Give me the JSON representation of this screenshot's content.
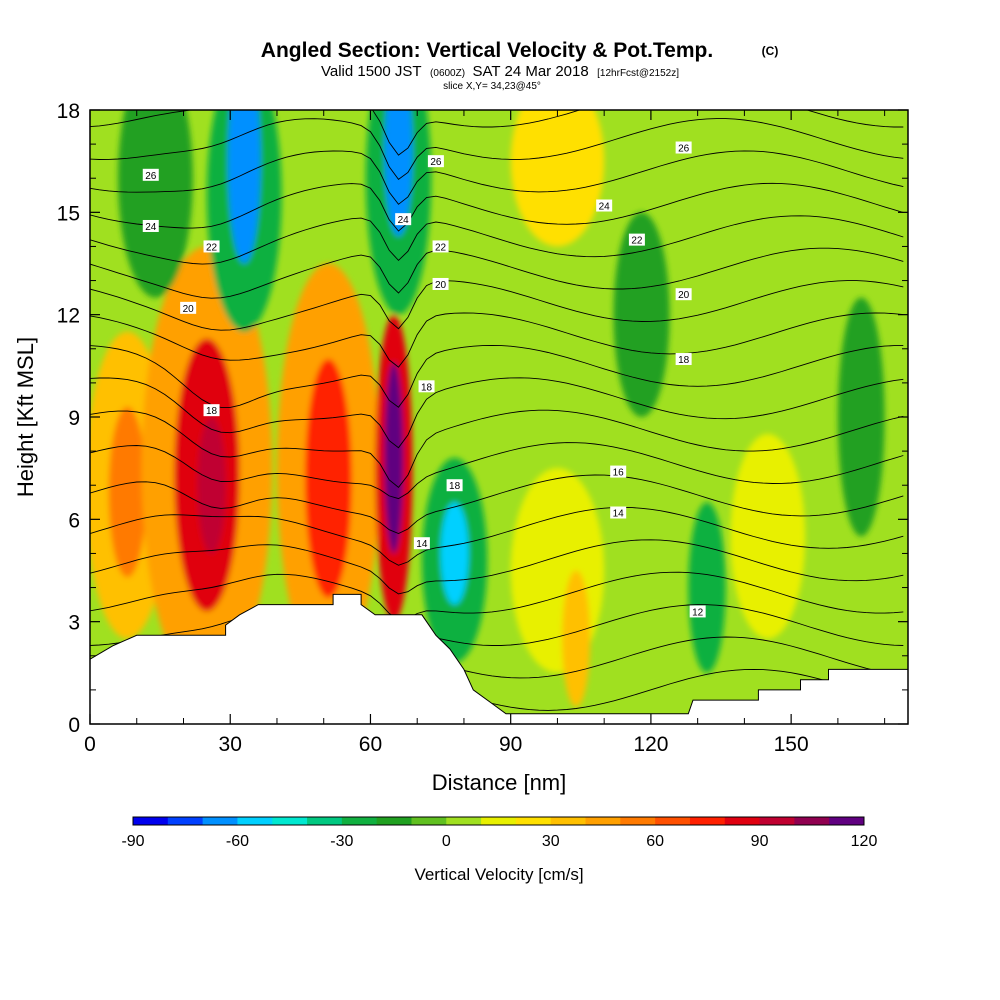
{
  "chart_data": {
    "type": "heatmap",
    "title": "Angled Section: Vertical Velocity & Pot.Temp.",
    "title_unit": "(C)",
    "subtitle_parts": {
      "valid": "Valid 1500 JST",
      "utc": "(0600Z)",
      "date": "SAT 24 Mar 2018",
      "fcst": "[12hrFcst@2152z]"
    },
    "slice_text": "slice X,Y= 34,23@45°",
    "xlabel": "Distance [nm]",
    "ylabel": "Height [Kft MSL]",
    "xlim": [
      0,
      175
    ],
    "ylim": [
      0,
      18
    ],
    "x_ticks": [
      0,
      30,
      60,
      90,
      120,
      150
    ],
    "y_ticks": [
      0,
      3,
      6,
      9,
      12,
      15,
      18
    ],
    "colorbar": {
      "label": "Vertical Velocity [cm/s]",
      "min": -90,
      "max": 120,
      "step": 10,
      "tick_values": [
        -90,
        -60,
        -30,
        0,
        30,
        60,
        90,
        120
      ],
      "colors": [
        "#0000ee",
        "#0040ff",
        "#0090ff",
        "#00d0ff",
        "#00e8d0",
        "#00c880",
        "#10b040",
        "#20a020",
        "#60c020",
        "#a0e020",
        "#e8f000",
        "#ffe000",
        "#ffc000",
        "#ffa000",
        "#ff7a00",
        "#ff5000",
        "#ff2000",
        "#e00010",
        "#c00030",
        "#900050",
        "#600080"
      ]
    },
    "terrain": [
      [
        0,
        1.9
      ],
      [
        5,
        2.3
      ],
      [
        10,
        2.6
      ],
      [
        29,
        2.6
      ],
      [
        29,
        2.9
      ],
      [
        32,
        3.2
      ],
      [
        36,
        3.5
      ],
      [
        52,
        3.5
      ],
      [
        52,
        3.8
      ],
      [
        58,
        3.8
      ],
      [
        58,
        3.5
      ],
      [
        61,
        3.2
      ],
      [
        71,
        3.2
      ],
      [
        74,
        2.6
      ],
      [
        77,
        2.2
      ],
      [
        80,
        1.6
      ],
      [
        82,
        1.0
      ],
      [
        86,
        0.6
      ],
      [
        89,
        0.3
      ],
      [
        128,
        0.3
      ],
      [
        129,
        0.7
      ],
      [
        143,
        0.7
      ],
      [
        143,
        1.0
      ],
      [
        152,
        1.0
      ],
      [
        152,
        1.3
      ],
      [
        158,
        1.3
      ],
      [
        158,
        1.6
      ],
      [
        175,
        1.6
      ]
    ],
    "velocity_cells": [
      {
        "x": 8,
        "y": 7,
        "rx": 9,
        "ry": 4.5,
        "value": 30
      },
      {
        "x": 8,
        "y": 6.8,
        "rx": 4,
        "ry": 2.5,
        "value": 50
      },
      {
        "x": 25,
        "y": 7.5,
        "rx": 14,
        "ry": 6.5,
        "value": 40
      },
      {
        "x": 25,
        "y": 7.3,
        "rx": 7,
        "ry": 4,
        "value": 80
      },
      {
        "x": 26,
        "y": 7.0,
        "rx": 3,
        "ry": 2,
        "value": 90
      },
      {
        "x": 51,
        "y": 7.5,
        "rx": 11,
        "ry": 6,
        "value": 40
      },
      {
        "x": 51,
        "y": 7.2,
        "rx": 5,
        "ry": 3.5,
        "value": 70
      },
      {
        "x": 65,
        "y": 7.5,
        "rx": 4,
        "ry": 4.5,
        "value": 80
      },
      {
        "x": 65,
        "y": 7.8,
        "rx": 2,
        "ry": 2.8,
        "value": 110
      },
      {
        "x": 33,
        "y": 15.5,
        "rx": 8,
        "ry": 4,
        "value": -30
      },
      {
        "x": 33,
        "y": 16.5,
        "rx": 3.5,
        "ry": 3,
        "value": -70
      },
      {
        "x": 66,
        "y": 16,
        "rx": 7,
        "ry": 4,
        "value": -30
      },
      {
        "x": 66,
        "y": 16.8,
        "rx": 3,
        "ry": 2.5,
        "value": -70
      },
      {
        "x": 78,
        "y": 4.8,
        "rx": 7,
        "ry": 3,
        "value": -30
      },
      {
        "x": 78,
        "y": 5.0,
        "rx": 3,
        "ry": 1.5,
        "value": -60
      },
      {
        "x": 14,
        "y": 16,
        "rx": 8,
        "ry": 3.5,
        "value": -20
      },
      {
        "x": 132,
        "y": 4,
        "rx": 4,
        "ry": 2.5,
        "value": -25
      },
      {
        "x": 118,
        "y": 12,
        "rx": 6,
        "ry": 3,
        "value": -20
      },
      {
        "x": 165,
        "y": 9,
        "rx": 5,
        "ry": 3.5,
        "value": -20
      },
      {
        "x": 100,
        "y": 16.5,
        "rx": 10,
        "ry": 2.5,
        "value": 20
      },
      {
        "x": 100,
        "y": 4.5,
        "rx": 10,
        "ry": 3,
        "value": 15
      },
      {
        "x": 104,
        "y": 2.5,
        "rx": 3,
        "ry": 2,
        "value": 30
      },
      {
        "x": 145,
        "y": 5.5,
        "rx": 8,
        "ry": 3,
        "value": 15
      }
    ],
    "contour_labels": [
      {
        "text": "26",
        "x": 13,
        "y": 16.1
      },
      {
        "text": "24",
        "x": 13,
        "y": 14.6
      },
      {
        "text": "22",
        "x": 26,
        "y": 14.0
      },
      {
        "text": "20",
        "x": 21,
        "y": 12.2
      },
      {
        "text": "18",
        "x": 26,
        "y": 9.2
      },
      {
        "text": "26",
        "x": 74,
        "y": 16.5
      },
      {
        "text": "24",
        "x": 67,
        "y": 14.8
      },
      {
        "text": "22",
        "x": 75,
        "y": 14.0
      },
      {
        "text": "20",
        "x": 75,
        "y": 12.9
      },
      {
        "text": "18",
        "x": 72,
        "y": 9.9
      },
      {
        "text": "18",
        "x": 78,
        "y": 7.0
      },
      {
        "text": "14",
        "x": 71,
        "y": 5.3
      },
      {
        "text": "26",
        "x": 127,
        "y": 16.9
      },
      {
        "text": "24",
        "x": 110,
        "y": 15.2
      },
      {
        "text": "22",
        "x": 117,
        "y": 14.2
      },
      {
        "text": "20",
        "x": 127,
        "y": 12.6
      },
      {
        "text": "18",
        "x": 127,
        "y": 10.7
      },
      {
        "text": "16",
        "x": 113,
        "y": 7.4
      },
      {
        "text": "14",
        "x": 113,
        "y": 6.2
      },
      {
        "text": "12",
        "x": 130,
        "y": 3.3
      }
    ]
  }
}
